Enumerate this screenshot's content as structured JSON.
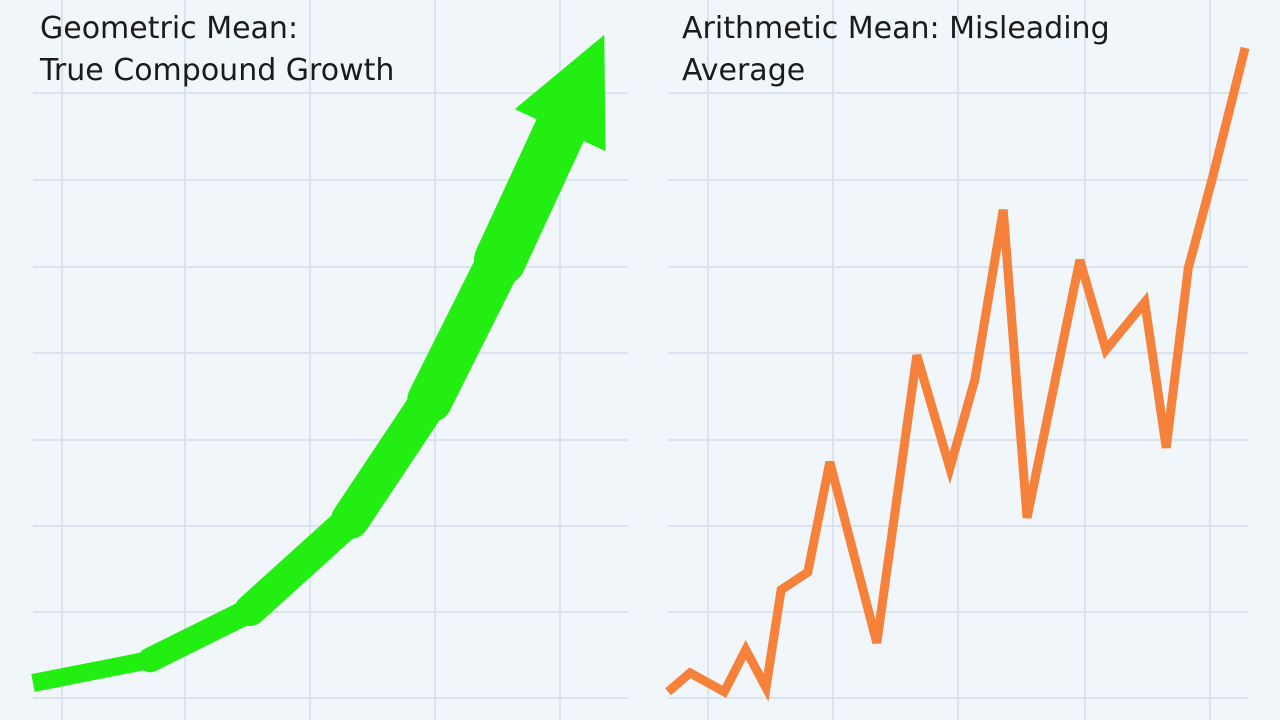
{
  "chart_data": [
    {
      "type": "arrow",
      "title": [
        "Geometric Mean:",
        "True Compound Growth"
      ],
      "color": "#22ee11",
      "x": [
        0,
        19.7,
        36.5,
        53.3,
        66.7,
        78.5,
        88.6
      ],
      "values": [
        2.5,
        5.9,
        13.2,
        26.5,
        44.1,
        64.7,
        83.8
      ],
      "xlim": [
        0,
        100
      ],
      "ylim": [
        0,
        100
      ]
    },
    {
      "type": "line",
      "title": [
        "Arithmetic Mean: Misleading",
        "Average"
      ],
      "color": "#f5813a",
      "x": [
        0,
        3.8,
        9.7,
        13.4,
        16.9,
        19.5,
        24.1,
        27.9,
        36.0,
        42.9,
        48.6,
        52.9,
        57.8,
        61.9,
        71.0,
        75.5,
        82.2,
        85.9,
        89.7,
        94.0,
        99.5
      ],
      "values": [
        1.2,
        4.0,
        1.2,
        7.4,
        1.8,
        16.2,
        18.8,
        35.0,
        8.4,
        50.7,
        34.1,
        47.1,
        72.1,
        26.8,
        64.7,
        51.5,
        58.5,
        37.1,
        63.5,
        77.2,
        95.9
      ],
      "xlim": [
        0,
        100
      ],
      "ylim": [
        0,
        100
      ]
    }
  ]
}
